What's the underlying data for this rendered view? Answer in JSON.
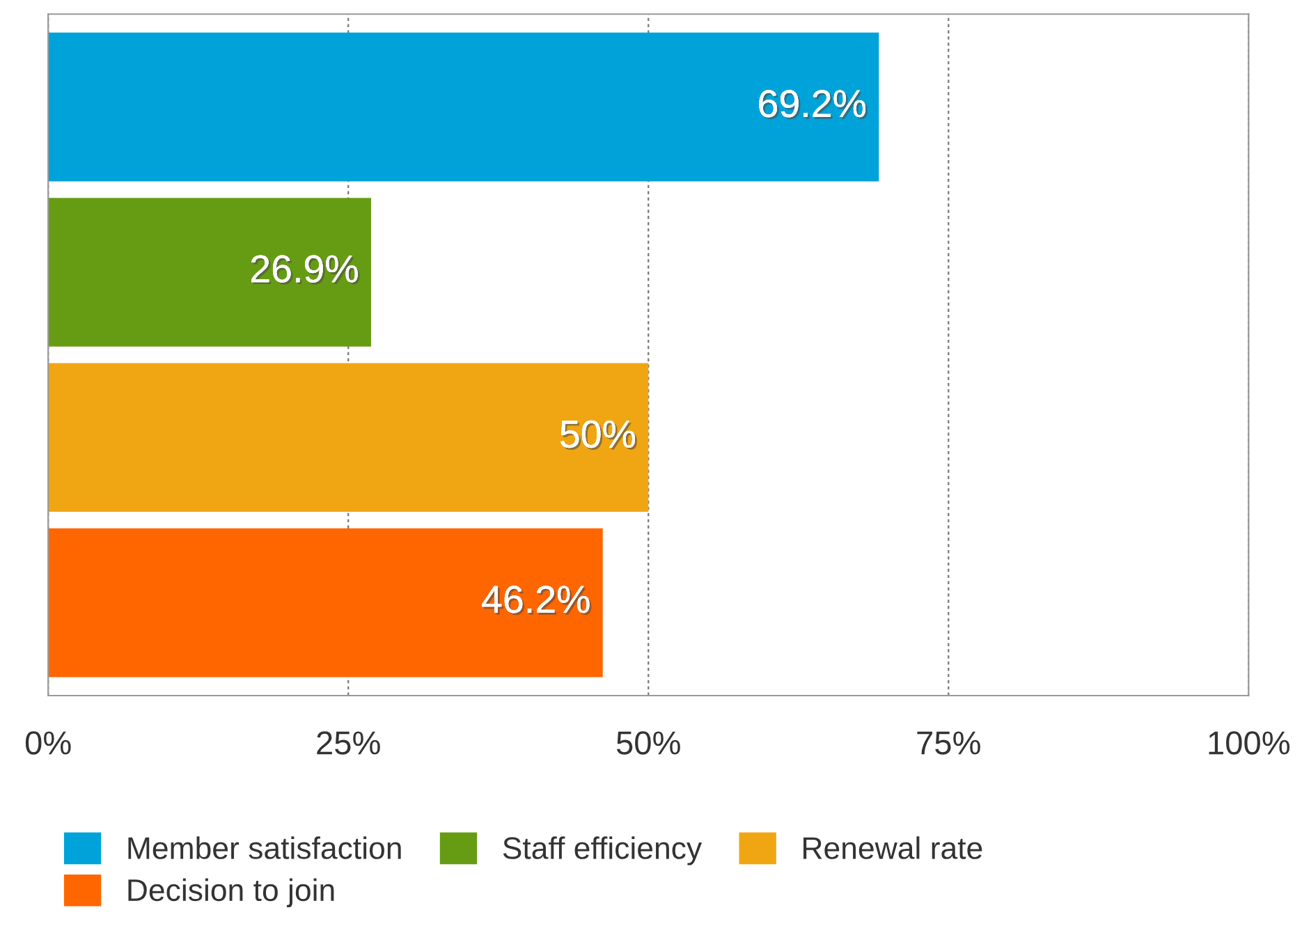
{
  "chart_data": {
    "type": "bar",
    "orientation": "horizontal",
    "categories": [
      null
    ],
    "series": [
      {
        "name": "Member satisfaction",
        "color": "#00a3d9",
        "values": [
          69.2
        ],
        "value_labels": [
          "69.2%"
        ]
      },
      {
        "name": "Staff efficiency",
        "color": "#669c13",
        "values": [
          26.9
        ],
        "value_labels": [
          "26.9%"
        ]
      },
      {
        "name": "Renewal rate",
        "color": "#f0a613",
        "values": [
          50
        ],
        "value_labels": [
          "50%"
        ]
      },
      {
        "name": "Decision to join",
        "color": "#ff6600",
        "values": [
          46.2
        ],
        "value_labels": [
          "46.2%"
        ]
      }
    ],
    "xlim": [
      0,
      100
    ],
    "xticks": [
      {
        "value": 0,
        "label": "0%"
      },
      {
        "value": 25,
        "label": "25%"
      },
      {
        "value": 50,
        "label": "50%"
      },
      {
        "value": 75,
        "label": "75%"
      },
      {
        "value": 100,
        "label": "100%"
      }
    ],
    "grid": "x",
    "legend": "bottom"
  }
}
